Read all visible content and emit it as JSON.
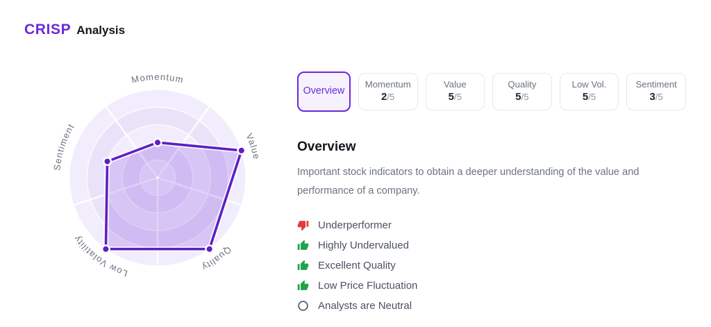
{
  "brand": {
    "logo": "CRISP",
    "title": "Analysis"
  },
  "colors": {
    "accent": "#6d28d9",
    "accent_bg": "#f5f2fe",
    "negative": "#e23b3b",
    "positive": "#1ea34c",
    "neutral": "#3f4754",
    "heading": "#15151d",
    "muted": "#6b7280",
    "body": "#4a5160",
    "tab_border": "#e7e8ec",
    "score": "#22262e",
    "score_total": "#8b919c"
  },
  "tabs": [
    {
      "label": "Overview",
      "active": true
    },
    {
      "label": "Momentum",
      "score": "2",
      "total": "/5"
    },
    {
      "label": "Value",
      "score": "5",
      "total": "/5"
    },
    {
      "label": "Quality",
      "score": "5",
      "total": "/5"
    },
    {
      "label": "Low Vol.",
      "score": "5",
      "total": "/5"
    },
    {
      "label": "Sentiment",
      "score": "3",
      "total": "/5"
    }
  ],
  "section": {
    "heading": "Overview",
    "description": "Important stock indicators to obtain a deeper understanding of the value and performance of a company."
  },
  "indicators": [
    {
      "icon": "thumb-down-icon",
      "sentiment": "negative",
      "label": "Underperformer"
    },
    {
      "icon": "thumb-up-icon",
      "sentiment": "positive",
      "label": "Highly Undervalued"
    },
    {
      "icon": "thumb-up-icon",
      "sentiment": "positive",
      "label": "Excellent Quality"
    },
    {
      "icon": "thumb-up-icon",
      "sentiment": "positive",
      "label": "Low Price Fluctuation"
    },
    {
      "icon": "neutral-circle-icon",
      "sentiment": "neutral",
      "label": "Analysts are Neutral"
    }
  ],
  "chart_data": {
    "type": "radar",
    "categories": [
      "Momentum",
      "Value",
      "Quality",
      "Low Volatility",
      "Sentiment"
    ],
    "values": [
      2,
      5,
      5,
      5,
      3
    ],
    "max": 5,
    "rings": 5,
    "start_angle_deg": -90,
    "stroke_color": "#5e1fc2",
    "stroke_halo": "rgba(255,255,255,0.9)",
    "fill_color": "rgba(109,40,217,0.20)",
    "band_colors": [
      "#f1edfd",
      "#e9e2f9",
      "#f1edfd",
      "#e9e2f9",
      "#f1edfd"
    ],
    "grid_line_color": "rgba(255,255,255,0.75)",
    "spoke_color": "rgba(255,255,255,0.9)",
    "label_color": "#6b7280"
  }
}
